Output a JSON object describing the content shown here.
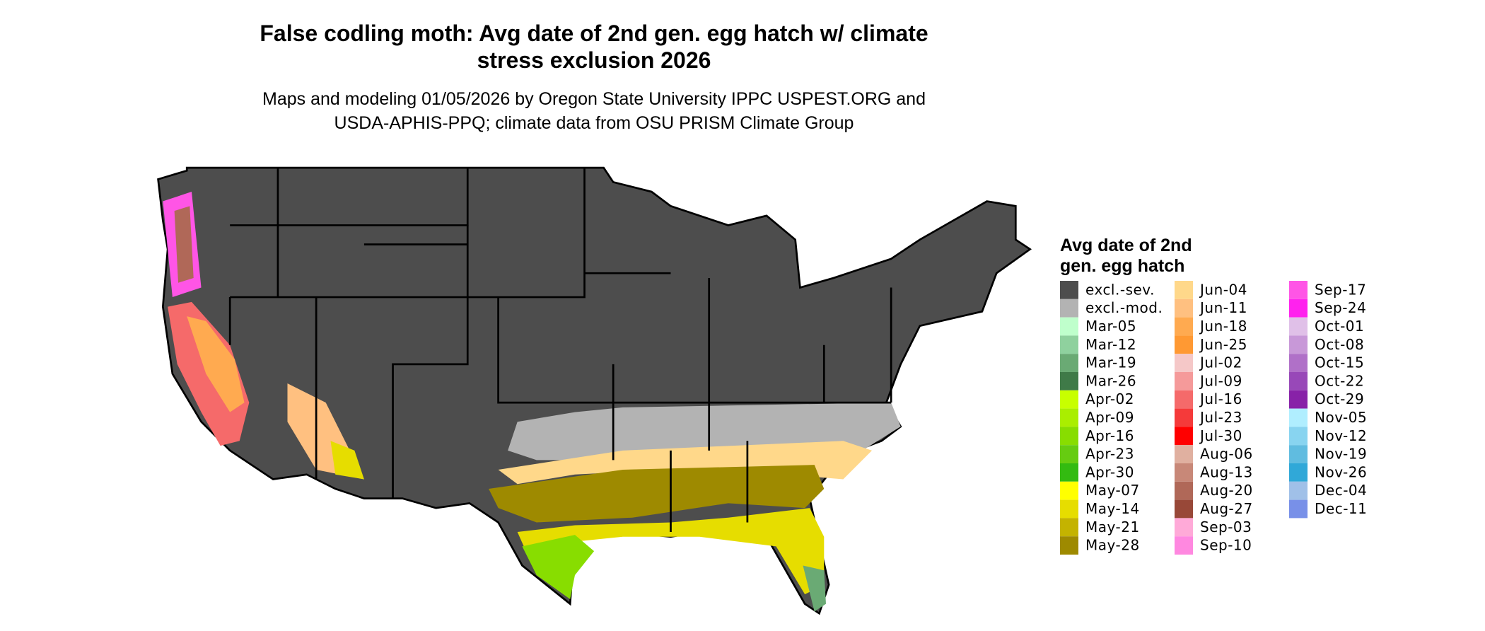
{
  "chart_data": {
    "type": "map",
    "title": [
      "False codling moth: Avg date of 2nd gen. egg hatch w/ climate",
      "stress exclusion 2026"
    ],
    "subtitle": [
      "Maps and modeling 01/05/2026 by Oregon State University IPPC USPEST.ORG and",
      "USDA-APHIS-PPQ; climate data from OSU PRISM Climate Group"
    ],
    "legend_title": [
      "Avg date of 2nd",
      "gen. egg hatch"
    ],
    "legend": [
      {
        "label": "excl.-sev.",
        "color": "#4d4d4d"
      },
      {
        "label": "excl.-mod.",
        "color": "#b3b3b3"
      },
      {
        "label": "Mar-05",
        "color": "#bfffcc"
      },
      {
        "label": "Mar-12",
        "color": "#8fd19e"
      },
      {
        "label": "Mar-19",
        "color": "#6aaa74"
      },
      {
        "label": "Mar-26",
        "color": "#3f7a48"
      },
      {
        "label": "Apr-02",
        "color": "#c8ff00"
      },
      {
        "label": "Apr-09",
        "color": "#aaee00"
      },
      {
        "label": "Apr-16",
        "color": "#88dd00"
      },
      {
        "label": "Apr-23",
        "color": "#66cc11"
      },
      {
        "label": "Apr-30",
        "color": "#33bb11"
      },
      {
        "label": "May-07",
        "color": "#ffff00"
      },
      {
        "label": "May-14",
        "color": "#e6dd00"
      },
      {
        "label": "May-21",
        "color": "#c4b300"
      },
      {
        "label": "May-28",
        "color": "#9e8a00"
      },
      {
        "label": "Jun-04",
        "color": "#ffd88a"
      },
      {
        "label": "Jun-11",
        "color": "#ffc080"
      },
      {
        "label": "Jun-18",
        "color": "#ffaa50"
      },
      {
        "label": "Jun-25",
        "color": "#ff9933"
      },
      {
        "label": "Jul-02",
        "color": "#f5c8c8"
      },
      {
        "label": "Jul-09",
        "color": "#f59a9a"
      },
      {
        "label": "Jul-16",
        "color": "#f56a6a"
      },
      {
        "label": "Jul-23",
        "color": "#f53a3a"
      },
      {
        "label": "Jul-30",
        "color": "#ff0000"
      },
      {
        "label": "Aug-06",
        "color": "#e0b0a0"
      },
      {
        "label": "Aug-13",
        "color": "#c88878"
      },
      {
        "label": "Aug-20",
        "color": "#b06858"
      },
      {
        "label": "Aug-27",
        "color": "#984838"
      },
      {
        "label": "Sep-03",
        "color": "#ffaad8"
      },
      {
        "label": "Sep-10",
        "color": "#ff88e0"
      },
      {
        "label": "Sep-17",
        "color": "#ff55e6"
      },
      {
        "label": "Sep-24",
        "color": "#ff22ee"
      },
      {
        "label": "Oct-01",
        "color": "#e0c0e8"
      },
      {
        "label": "Oct-08",
        "color": "#c898d8"
      },
      {
        "label": "Oct-15",
        "color": "#b070c8"
      },
      {
        "label": "Oct-22",
        "color": "#9848b8"
      },
      {
        "label": "Oct-29",
        "color": "#8822a8"
      },
      {
        "label": "Nov-05",
        "color": "#b0eeff"
      },
      {
        "label": "Nov-12",
        "color": "#88d4f0"
      },
      {
        "label": "Nov-19",
        "color": "#60bce0"
      },
      {
        "label": "Nov-26",
        "color": "#30a8d8"
      },
      {
        "label": "Dec-04",
        "color": "#a0c0e8"
      },
      {
        "label": "Dec-11",
        "color": "#7890e8"
      }
    ]
  }
}
